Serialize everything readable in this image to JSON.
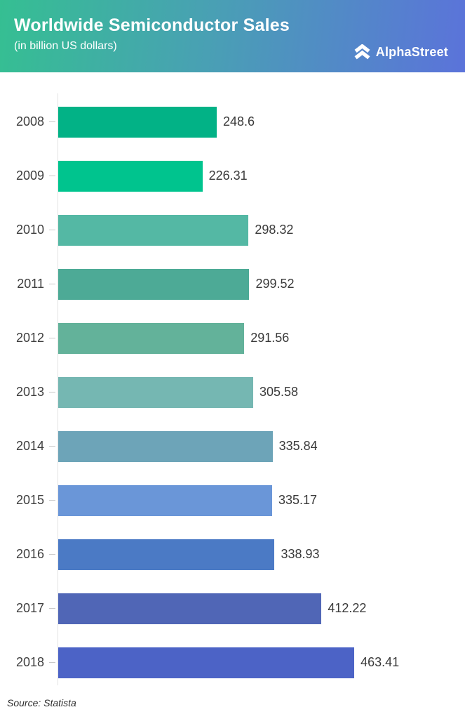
{
  "header": {
    "title": "Worldwide Semiconductor Sales",
    "subtitle": "(in billion US dollars)",
    "brand_name": "AlphaStreet",
    "brand_icon": "double-chevron-up-icon",
    "gradient_left": "#35bf92",
    "gradient_right": "#5b73da",
    "text_color": "#ffffff"
  },
  "chart_data": {
    "type": "bar",
    "orientation": "horizontal",
    "title": "Worldwide Semiconductor Sales",
    "subtitle": "(in billion US dollars)",
    "categories": [
      "2008",
      "2009",
      "2010",
      "2011",
      "2012",
      "2013",
      "2014",
      "2015",
      "2016",
      "2017",
      "2018"
    ],
    "values": [
      248.6,
      226.31,
      298.32,
      299.52,
      291.56,
      305.58,
      335.84,
      335.17,
      338.93,
      412.22,
      463.41
    ],
    "bar_colors": [
      "#02b286",
      "#00c48e",
      "#54b8a4",
      "#4daa96",
      "#63b29a",
      "#75b7b2",
      "#6da4b8",
      "#6a96d8",
      "#4b7ac5",
      "#5066b6",
      "#4c63c6"
    ],
    "value_labels": [
      "248.6",
      "226.31",
      "298.32",
      "299.52",
      "291.56",
      "305.58",
      "335.84",
      "335.17",
      "338.93",
      "412.22",
      "463.41"
    ],
    "xlim": [
      0,
      510
    ],
    "grid": false,
    "legend": false,
    "axis_color": "#e3e3e3",
    "label_color": "#3f3f3f"
  },
  "footer": {
    "source": "Source: Statista"
  }
}
